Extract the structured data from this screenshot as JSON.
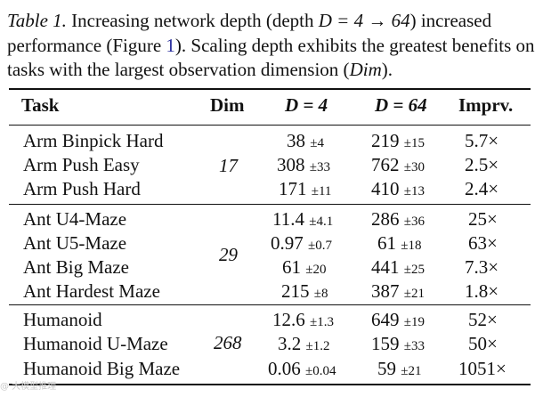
{
  "caption": {
    "label": "Table 1.",
    "text_a": "Increasing network depth (depth",
    "math_a": "D = 4 → 64",
    "text_b": ") increased performance (Figure",
    "fig_ref": "1",
    "text_c": "). Scaling depth exhibits the greatest benefits on tasks with the largest observation dimension (",
    "dim_word": "Dim",
    "text_d": ")."
  },
  "header": {
    "task": "Task",
    "dim": "Dim",
    "d4": "D = 4",
    "d64": "D = 64",
    "imprv": "Imprv."
  },
  "groups": [
    {
      "dim": "17",
      "rows": [
        {
          "task": "Arm Binpick Hard",
          "d4": "38",
          "d4_pm": "±4",
          "d64": "219",
          "d64_pm": "±15",
          "imprv": "5.7×"
        },
        {
          "task": "Arm Push Easy",
          "d4": "308",
          "d4_pm": "±33",
          "d64": "762",
          "d64_pm": "±30",
          "imprv": "2.5×"
        },
        {
          "task": "Arm Push Hard",
          "d4": "171",
          "d4_pm": "±11",
          "d64": "410",
          "d64_pm": "±13",
          "imprv": "2.4×"
        }
      ]
    },
    {
      "dim": "29",
      "rows": [
        {
          "task": "Ant U4-Maze",
          "d4": "11.4",
          "d4_pm": "±4.1",
          "d64": "286",
          "d64_pm": "±36",
          "imprv": "25×"
        },
        {
          "task": "Ant U5-Maze",
          "d4": "0.97",
          "d4_pm": "±0.7",
          "d64": "61",
          "d64_pm": "±18",
          "imprv": "63×"
        },
        {
          "task": "Ant Big Maze",
          "d4": "61",
          "d4_pm": "±20",
          "d64": "441",
          "d64_pm": "±25",
          "imprv": "7.3×"
        },
        {
          "task": "Ant Hardest Maze",
          "d4": "215",
          "d4_pm": "±8",
          "d64": "387",
          "d64_pm": "±21",
          "imprv": "1.8×"
        }
      ]
    },
    {
      "dim": "268",
      "rows": [
        {
          "task": "Humanoid",
          "d4": "12.6",
          "d4_pm": "±1.3",
          "d64": "649",
          "d64_pm": "±19",
          "imprv": "52×"
        },
        {
          "task": "Humanoid U-Maze",
          "d4": "3.2",
          "d4_pm": "±1.2",
          "d64": "159",
          "d64_pm": "±33",
          "imprv": "50×"
        },
        {
          "task": "Humanoid Big Maze",
          "d4": "0.06",
          "d4_pm": "±0.04",
          "d64": "59",
          "d64_pm": "±21",
          "imprv": "1051×"
        }
      ]
    }
  ],
  "watermark": "@ 大模型推理"
}
